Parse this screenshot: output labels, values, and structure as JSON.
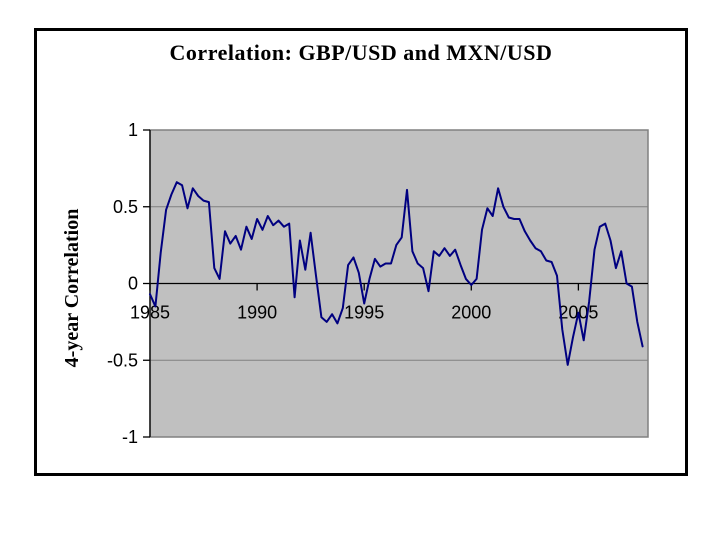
{
  "slide": {
    "background": "#ffffff",
    "frame_border_color": "#000000"
  },
  "chart_data": {
    "type": "line",
    "title": "Correlation: GBP/USD and MXN/USD",
    "xlabel": "",
    "ylabel": "4-year Correlation",
    "grid": true,
    "legend": false,
    "xlim": [
      1985,
      2008.25
    ],
    "ylim": [
      -1,
      1
    ],
    "x_ticks": [
      1985,
      1990,
      1995,
      2000,
      2005
    ],
    "x_tick_labels": [
      "1985",
      "1990",
      "1995",
      "2000",
      "2005"
    ],
    "y_ticks": [
      1,
      0.5,
      0,
      -0.5,
      -1
    ],
    "y_tick_labels": [
      "1",
      "0.5",
      "0",
      "-0.5",
      "-1"
    ],
    "colors": {
      "line": "#000080",
      "plot_bg": "#c0c0c0",
      "plot_border": "#808080",
      "gridline": "#808080",
      "axis": "#000000"
    },
    "x": [
      1985,
      1985.25,
      1985.5,
      1985.75,
      1986,
      1986.25,
      1986.5,
      1986.75,
      1987,
      1987.25,
      1987.5,
      1987.75,
      1988,
      1988.25,
      1988.5,
      1988.75,
      1989,
      1989.25,
      1989.5,
      1989.75,
      1990,
      1990.25,
      1990.5,
      1990.75,
      1991,
      1991.25,
      1991.5,
      1991.75,
      1992,
      1992.25,
      1992.5,
      1992.75,
      1993,
      1993.25,
      1993.5,
      1993.75,
      1994,
      1994.25,
      1994.5,
      1994.75,
      1995,
      1995.25,
      1995.5,
      1995.75,
      1996,
      1996.25,
      1996.5,
      1996.75,
      1997,
      1997.25,
      1997.5,
      1997.75,
      1998,
      1998.25,
      1998.5,
      1998.75,
      1999,
      1999.25,
      1999.5,
      1999.75,
      2000,
      2000.25,
      2000.5,
      2000.75,
      2001,
      2001.25,
      2001.5,
      2001.75,
      2002,
      2002.25,
      2002.5,
      2002.75,
      2003,
      2003.25,
      2003.5,
      2003.75,
      2004,
      2004.25,
      2004.5,
      2004.75,
      2005,
      2005.25,
      2005.5,
      2005.75,
      2006,
      2006.25,
      2006.5,
      2006.75,
      2007,
      2007.25,
      2007.5,
      2007.75,
      2008
    ],
    "y": [
      -0.07,
      -0.15,
      0.2,
      0.48,
      0.58,
      0.66,
      0.64,
      0.49,
      0.62,
      0.57,
      0.54,
      0.53,
      0.1,
      0.03,
      0.34,
      0.26,
      0.31,
      0.22,
      0.37,
      0.29,
      0.42,
      0.35,
      0.44,
      0.38,
      0.41,
      0.37,
      0.39,
      -0.09,
      0.28,
      0.09,
      0.33,
      0.05,
      -0.22,
      -0.25,
      -0.2,
      -0.26,
      -0.16,
      0.12,
      0.17,
      0.07,
      -0.13,
      0.03,
      0.16,
      0.11,
      0.13,
      0.13,
      0.25,
      0.3,
      0.61,
      0.21,
      0.13,
      0.1,
      -0.05,
      0.21,
      0.18,
      0.23,
      0.18,
      0.22,
      0.12,
      0.03,
      -0.01,
      0.03,
      0.35,
      0.49,
      0.44,
      0.62,
      0.5,
      0.43,
      0.42,
      0.42,
      0.34,
      0.28,
      0.23,
      0.21,
      0.15,
      0.14,
      0.05,
      -0.3,
      -0.53,
      -0.35,
      -0.19,
      -0.37,
      -0.12,
      0.22,
      0.37,
      0.39,
      0.28,
      0.1,
      0.21,
      0.0,
      -0.02,
      -0.25,
      -0.41
    ]
  }
}
